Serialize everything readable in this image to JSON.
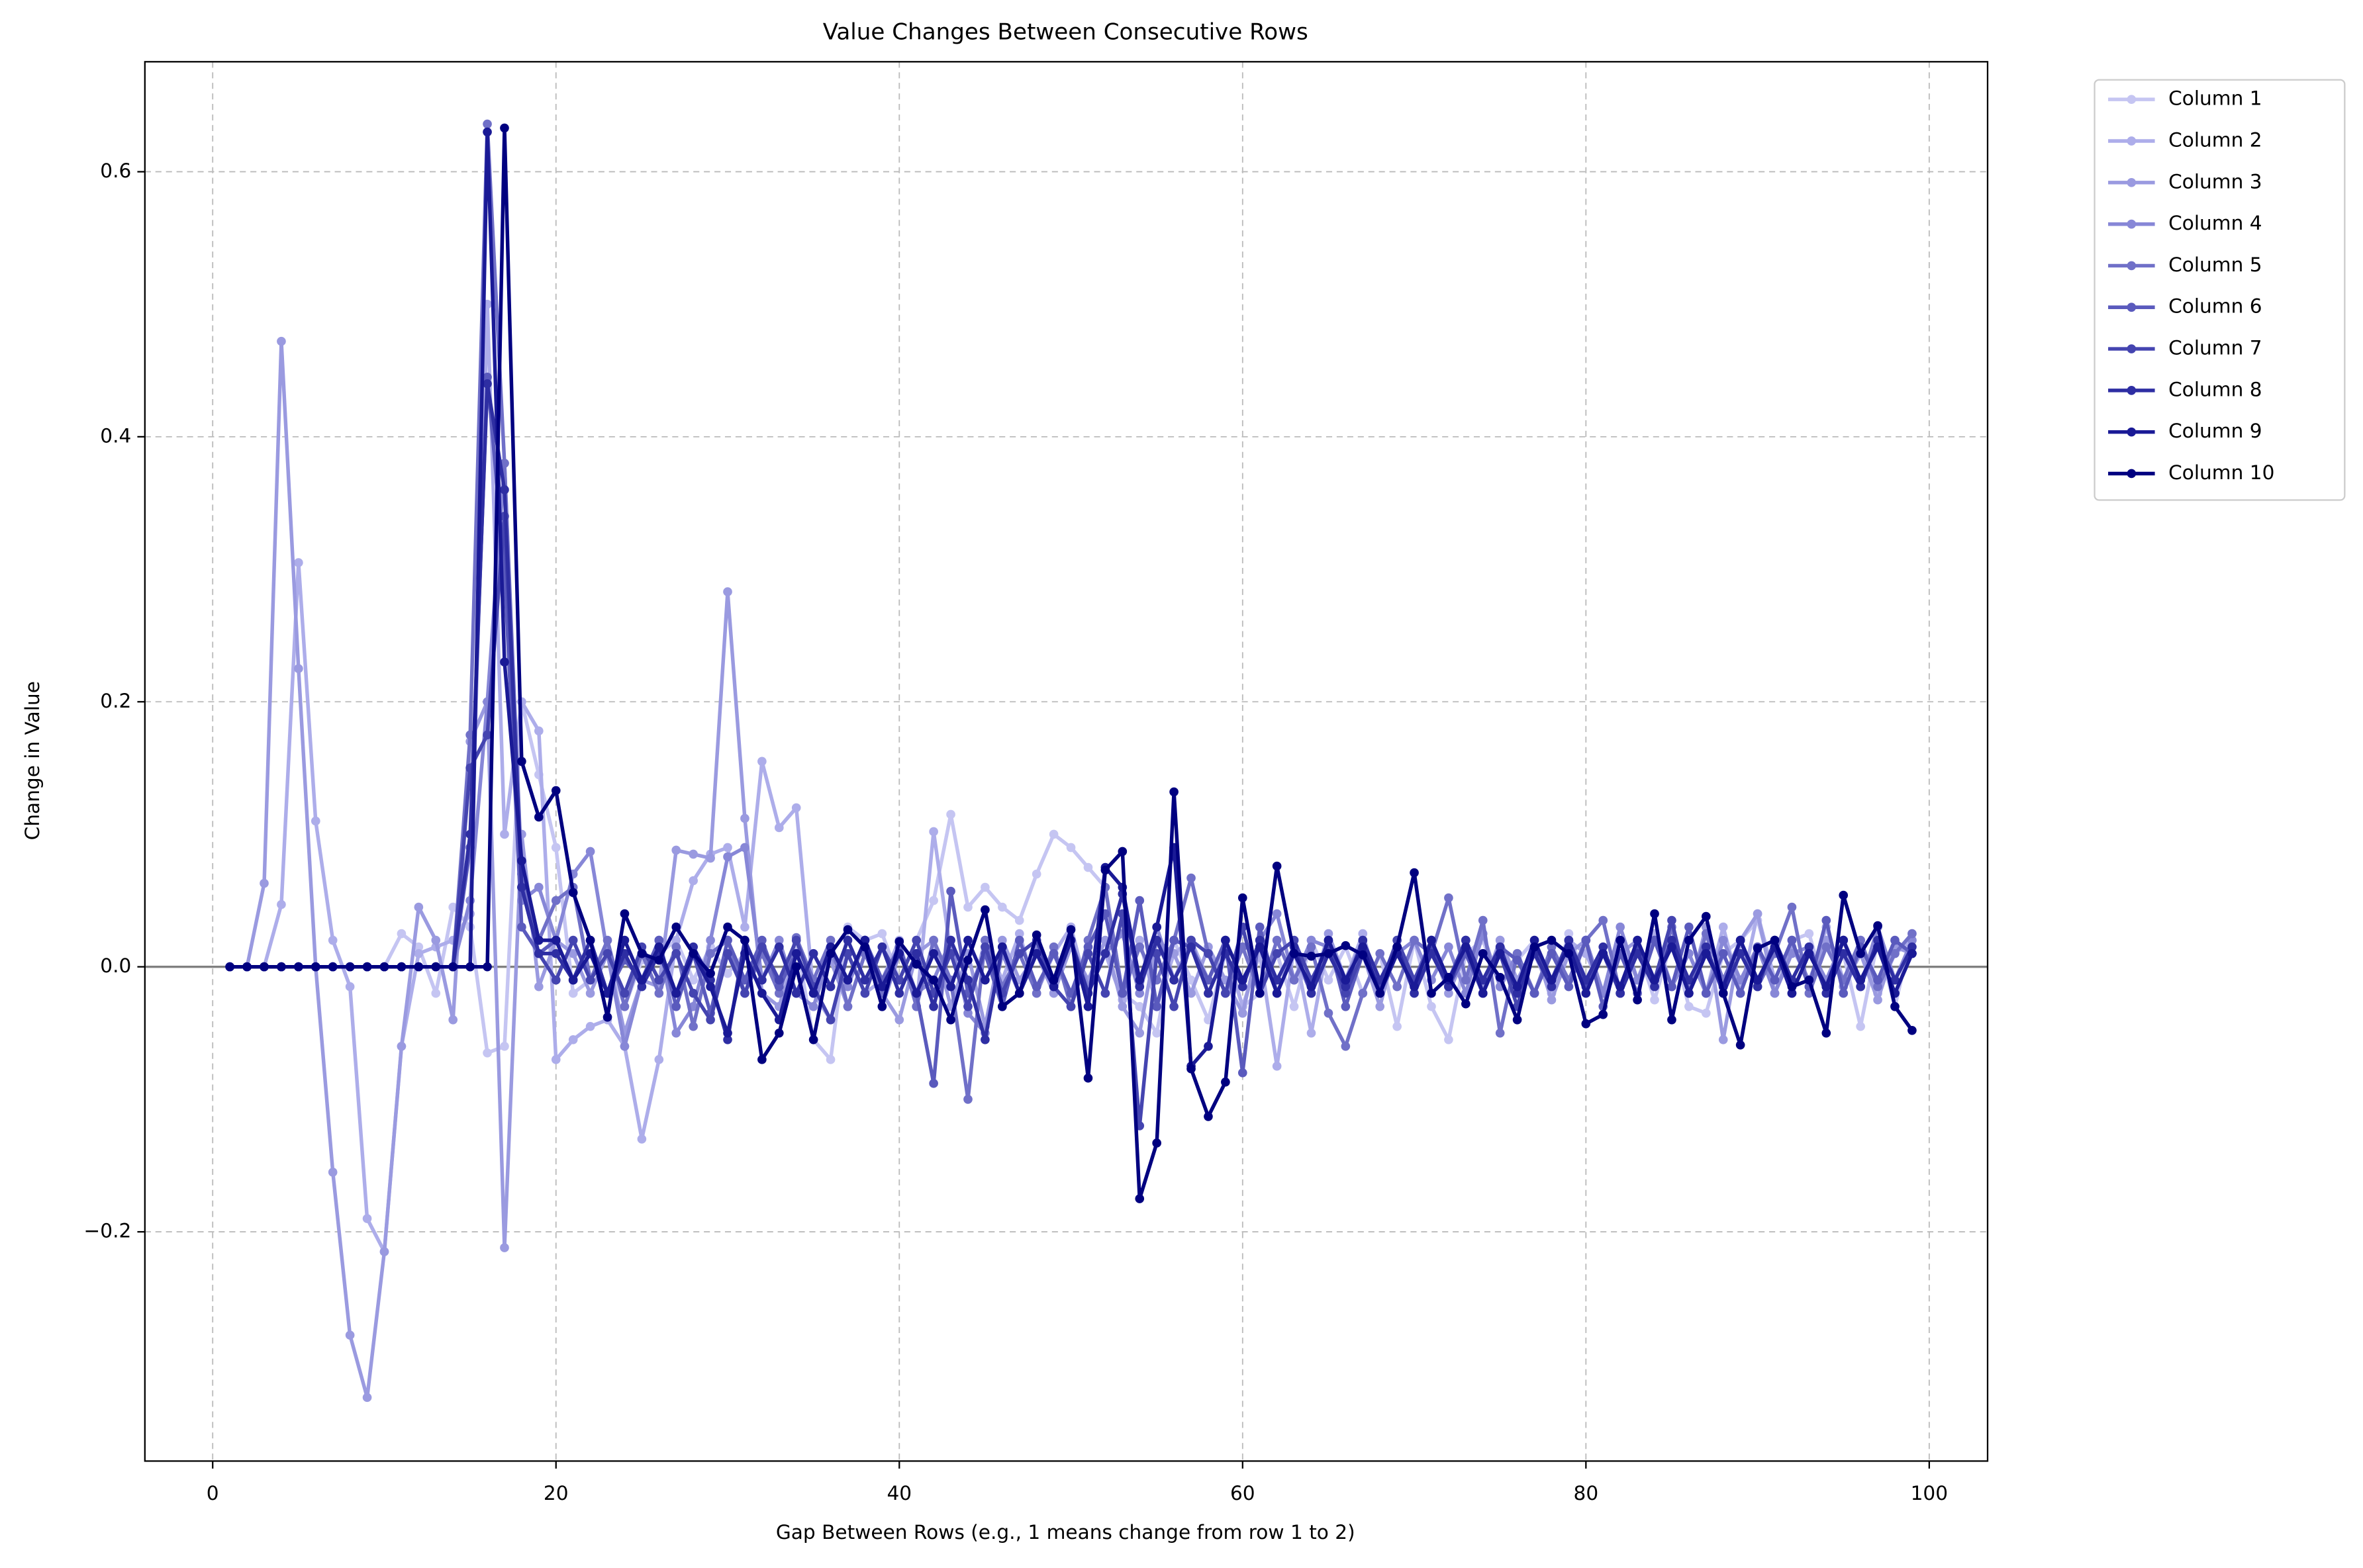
{
  "chart_data": {
    "type": "line",
    "title": "Value Changes Between Consecutive Rows",
    "xlabel": "Gap Between Rows (e.g., 1 means change from row 1 to 2)",
    "ylabel": "Change in Value",
    "xlim": [
      -3.95,
      103.4
    ],
    "ylim": [
      -0.373,
      0.683
    ],
    "xticks": [
      0,
      20,
      40,
      60,
      80,
      100
    ],
    "yticks": [
      {
        "value": -0.2,
        "label": "−0.2"
      },
      {
        "value": 0,
        "label": "0.0"
      },
      0.2,
      0.4,
      0.6
    ],
    "grid": true,
    "legend": "outside-upper-right",
    "x": [
      1,
      2,
      3,
      4,
      5,
      6,
      7,
      8,
      9,
      10,
      11,
      12,
      13,
      14,
      15,
      16,
      17,
      18,
      19,
      20,
      21,
      22,
      23,
      24,
      25,
      26,
      27,
      28,
      29,
      30,
      31,
      32,
      33,
      34,
      35,
      36,
      37,
      38,
      39,
      40,
      41,
      42,
      43,
      44,
      45,
      46,
      47,
      48,
      49,
      50,
      51,
      52,
      53,
      54,
      55,
      56,
      57,
      58,
      59,
      60,
      61,
      62,
      63,
      64,
      65,
      66,
      67,
      68,
      69,
      70,
      71,
      72,
      73,
      74,
      75,
      76,
      77,
      78,
      79,
      80,
      81,
      82,
      83,
      84,
      85,
      86,
      87,
      88,
      89,
      90,
      91,
      92,
      93,
      94,
      95,
      96,
      97,
      98,
      99
    ],
    "series": [
      {
        "name": "Column 1",
        "color": "#c5c5f2",
        "values": [
          0,
          0,
          0,
          0,
          0,
          0,
          0,
          0,
          0,
          0,
          0.025,
          0.015,
          -0.02,
          0.045,
          0.03,
          -0.065,
          -0.06,
          0.2,
          0.145,
          0.09,
          -0.02,
          -0.01,
          0.01,
          -0.03,
          0.005,
          0.01,
          0.02,
          -0.01,
          0.015,
          -0.005,
          0.01,
          -0.02,
          -0.03,
          0.02,
          -0.055,
          -0.07,
          0.03,
          0.02,
          0.025,
          -0.01,
          0.02,
          0.05,
          0.115,
          0.045,
          0.06,
          0.045,
          0.035,
          0.07,
          0.1,
          0.09,
          0.075,
          0.06,
          -0.02,
          -0.03,
          -0.05,
          0.02,
          -0.01,
          -0.04,
          0.01,
          -0.03,
          -0.02,
          0.01,
          -0.03,
          0.02,
          -0.01,
          0.015,
          -0.02,
          0.01,
          -0.045,
          0.02,
          -0.03,
          -0.055,
          0.01,
          0.02,
          -0.015,
          0.005,
          0.02,
          -0.02,
          0.025,
          -0.01,
          0.01,
          -0.02,
          0.015,
          -0.025,
          0.02,
          -0.03,
          -0.035,
          0.01,
          0.02,
          0.035,
          -0.01,
          0.02,
          0.025,
          -0.02,
          0.01,
          -0.045,
          0.02,
          -0.03,
          0.025
        ]
      },
      {
        "name": "Column 2",
        "color": "#adadea",
        "values": [
          0,
          0,
          0,
          0.047,
          0.305,
          0.11,
          0.02,
          -0.015,
          -0.19,
          -0.215,
          -0.06,
          0.01,
          0.015,
          0.02,
          0.04,
          0.5,
          0.1,
          0.2,
          0.178,
          -0.07,
          -0.055,
          -0.045,
          -0.04,
          -0.06,
          -0.13,
          -0.07,
          0.02,
          0.065,
          0.085,
          0.09,
          0.03,
          0.155,
          0.105,
          0.12,
          -0.02,
          -0.04,
          0.01,
          -0.02,
          -0.01,
          0.02,
          -0.03,
          0.102,
          0.01,
          -0.03,
          0.02,
          -0.01,
          0.025,
          -0.02,
          0.01,
          0.03,
          -0.02,
          0.01,
          -0.025,
          0.02,
          -0.03,
          0.01,
          0.02,
          -0.01,
          0.015,
          -0.03,
          0.01,
          -0.075,
          0.015,
          -0.05,
          0.02,
          -0.01,
          0.025,
          -0.02,
          0.01,
          -0.01,
          0.02,
          -0.01,
          0.015,
          -0.02,
          0.02,
          -0.01,
          0.01,
          -0.02,
          0.02,
          0.01,
          -0.02,
          0.02,
          -0.01,
          0.025,
          -0.015,
          0.01,
          -0.02,
          0.03,
          -0.02,
          0.04,
          -0.01,
          0.02,
          -0.015,
          0.03,
          -0.01,
          0.02,
          -0.02,
          0.01,
          0.02
        ]
      },
      {
        "name": "Column 3",
        "color": "#9a9ae0",
        "values": [
          0,
          0,
          0.063,
          0.472,
          0.225,
          0,
          -0.155,
          -0.278,
          -0.325,
          -0.215,
          -0.06,
          0.045,
          0.02,
          -0.04,
          0.17,
          0.2,
          -0.212,
          0.1,
          -0.015,
          0.02,
          0.01,
          -0.02,
          0.01,
          -0.05,
          -0.01,
          -0.015,
          0.088,
          0.085,
          0.082,
          0.283,
          0.112,
          -0.02,
          -0.03,
          0.01,
          -0.02,
          0.005,
          -0.03,
          0.01,
          -0.02,
          -0.04,
          0.01,
          0.02,
          -0.03,
          0.01,
          -0.045,
          0.02,
          -0.01,
          0.01,
          -0.02,
          0.015,
          -0.01,
          0.02,
          -0.03,
          -0.05,
          0.02,
          0.01,
          -0.02,
          0.015,
          -0.01,
          -0.035,
          0.02,
          -0.01,
          0.01,
          -0.02,
          0.025,
          -0.01,
          0.01,
          -0.03,
          0.02,
          -0.01,
          0.015,
          -0.02,
          0.01,
          -0.015,
          0.02,
          -0.01,
          0.015,
          -0.025,
          0.01,
          0.02,
          -0.02,
          0.01,
          0.02,
          -0.01,
          0.015,
          -0.02,
          0.03,
          -0.055,
          0.02,
          0.04,
          -0.02,
          0.015,
          -0.01,
          0.02,
          -0.015,
          0.01,
          -0.025,
          0.015,
          0.01
        ]
      },
      {
        "name": "Column 4",
        "color": "#8787d7",
        "values": [
          0,
          0,
          0,
          0,
          0,
          0,
          0,
          0,
          0,
          0,
          0,
          0,
          0,
          0,
          0.05,
          0.2,
          0.38,
          0.05,
          0.06,
          0.02,
          0.07,
          0.087,
          0.01,
          -0.06,
          -0.01,
          0.02,
          -0.05,
          -0.03,
          0.02,
          0.083,
          0.09,
          -0.01,
          0.02,
          -0.02,
          -0.03,
          0.01,
          -0.015,
          0.02,
          -0.03,
          0.01,
          -0.02,
          -0.01,
          0.02,
          -0.035,
          -0.05,
          0.01,
          -0.02,
          0.015,
          -0.01,
          0.02,
          -0.015,
          0.01,
          0.025,
          -0.02,
          0.03,
          -0.01,
          0.02,
          -0.02,
          0.01,
          -0.015,
          0.02,
          0.04,
          -0.01,
          0.02,
          0.015,
          -0.01,
          0.02,
          -0.01,
          0.01,
          0.02,
          -0.01,
          0.015,
          -0.02,
          0.025,
          -0.015,
          0.01,
          -0.02,
          0.015,
          -0.01,
          0.02,
          -0.02,
          0.03,
          -0.01,
          0.02,
          -0.015,
          0.01,
          -0.02,
          0.02,
          -0.01,
          0.015,
          -0.02,
          0.01,
          0.015,
          -0.01,
          0.02,
          -0.015,
          0.03,
          -0.01,
          0.02
        ]
      },
      {
        "name": "Column 5",
        "color": "#7070c8",
        "values": [
          0,
          0,
          0,
          0,
          0,
          0,
          0,
          0,
          0,
          0,
          0,
          0,
          0,
          0,
          0.175,
          0.636,
          0.38,
          0.07,
          0.02,
          0.05,
          0.06,
          -0.01,
          0.02,
          -0.03,
          0.01,
          -0.02,
          0.015,
          -0.045,
          0.01,
          0.02,
          -0.02,
          0.01,
          -0.02,
          0.022,
          -0.01,
          0.02,
          -0.03,
          0.01,
          -0.02,
          0.015,
          -0.03,
          0.02,
          -0.01,
          -0.1,
          0.02,
          -0.015,
          0.01,
          -0.02,
          0.015,
          -0.03,
          0.02,
          0.06,
          -0.02,
          0.015,
          -0.01,
          0.02,
          0.067,
          0.01,
          -0.02,
          0.015,
          -0.02,
          0.02,
          -0.01,
          0.015,
          -0.035,
          -0.06,
          -0.02,
          0.01,
          -0.015,
          0.02,
          0.01,
          0.052,
          -0.01,
          0.035,
          -0.05,
          0.01,
          -0.02,
          0.015,
          -0.01,
          0.02,
          0.035,
          -0.02,
          0.01,
          -0.015,
          0.03,
          -0.02,
          0.025,
          -0.01,
          0.02,
          -0.015,
          0.01,
          0.045,
          -0.02,
          0.015,
          -0.01,
          0.02,
          -0.015,
          0.01,
          0.025
        ]
      },
      {
        "name": "Column 6",
        "color": "#5a5abd",
        "values": [
          0,
          0,
          0,
          0,
          0,
          0,
          0,
          0,
          0,
          0,
          0,
          0,
          0,
          0,
          0.09,
          0.445,
          0.3,
          0.03,
          0.01,
          0.02,
          -0.01,
          0.01,
          -0.02,
          0.005,
          -0.01,
          0.02,
          -0.03,
          0.01,
          -0.035,
          0.02,
          -0.01,
          0.02,
          -0.015,
          0.01,
          -0.02,
          0.015,
          -0.01,
          0.02,
          -0.01,
          0.015,
          -0.02,
          -0.088,
          0.057,
          -0.02,
          0.01,
          -0.03,
          0.02,
          -0.015,
          0.01,
          -0.02,
          0.015,
          0.04,
          -0.02,
          0.05,
          -0.03,
          0.02,
          0.015,
          -0.01,
          0.02,
          -0.08,
          0.03,
          -0.02,
          0.01,
          -0.015,
          0.02,
          -0.03,
          0.01,
          -0.02,
          0.015,
          -0.01,
          0.02,
          -0.015,
          0.01,
          -0.02,
          0.015,
          0.005,
          -0.02,
          0.01,
          -0.015,
          0.02,
          -0.03,
          0.01,
          -0.02,
          0.02,
          -0.015,
          0.03,
          -0.02,
          0.01,
          -0.02,
          0.015,
          -0.01,
          0.02,
          -0.015,
          0.035,
          -0.02,
          0.015,
          -0.01,
          0.02,
          0.01
        ]
      },
      {
        "name": "Column 7",
        "color": "#4444b0",
        "values": [
          0,
          0,
          0,
          0,
          0,
          0,
          0,
          0,
          0,
          0,
          0,
          0,
          0,
          0,
          0.15,
          0.175,
          0.34,
          0.06,
          0.01,
          -0.01,
          0.02,
          -0.01,
          0.01,
          -0.02,
          0.015,
          -0.01,
          0.01,
          -0.02,
          -0.04,
          0.01,
          -0.02,
          0.015,
          -0.01,
          0.02,
          -0.015,
          -0.04,
          0.01,
          -0.02,
          0.015,
          -0.01,
          0.02,
          -0.02,
          0.01,
          -0.03,
          0.015,
          -0.02,
          0.01,
          0.02,
          -0.015,
          -0.03,
          0.01,
          -0.02,
          0.04,
          -0.12,
          0.01,
          -0.03,
          0.02,
          0.01,
          -0.02,
          0.03,
          -0.02,
          0.01,
          0.02,
          -0.01,
          0.015,
          -0.02,
          0.01,
          -0.015,
          0.02,
          -0.01,
          0.015,
          -0.01,
          0.02,
          -0.02,
          0.01,
          -0.03,
          0.015,
          -0.01,
          0.02,
          -0.015,
          0.01,
          -0.02,
          0.015,
          -0.01,
          0.035,
          -0.02,
          0.01,
          -0.015,
          0.02,
          -0.01,
          0.015,
          -0.02,
          0.01,
          -0.015,
          0.02,
          -0.01,
          0.015,
          -0.02,
          0.01
        ]
      },
      {
        "name": "Column 8",
        "color": "#2e2ea3",
        "values": [
          0,
          0,
          0,
          0,
          0,
          0,
          0,
          0,
          0,
          0,
          0,
          0,
          0,
          0,
          0.1,
          0.44,
          0.36,
          0.06,
          0.01,
          0.01,
          -0.01,
          0.02,
          -0.02,
          0.01,
          -0.015,
          0.01,
          -0.02,
          0.015,
          -0.01,
          -0.055,
          0.02,
          -0.01,
          0.015,
          -0.02,
          0.01,
          -0.015,
          0.02,
          -0.01,
          0.015,
          -0.02,
          0.01,
          -0.03,
          0.02,
          -0.01,
          -0.055,
          0.015,
          -0.02,
          0.01,
          -0.015,
          0.02,
          -0.02,
          0.01,
          0.055,
          -0.015,
          0.02,
          -0.01,
          0.015,
          -0.02,
          0.01,
          -0.015,
          0.02,
          -0.01,
          0.015,
          -0.02,
          0.01,
          -0.015,
          0.02,
          -0.01,
          0.015,
          -0.02,
          0.01,
          -0.015,
          0.02,
          -0.01,
          0.015,
          -0.02,
          0.01,
          -0.015,
          0.02,
          -0.01,
          0.015,
          -0.02,
          0.01,
          -0.015,
          0.02,
          -0.01,
          0.015,
          -0.02,
          0.01,
          -0.015,
          0.02,
          -0.01,
          0.015,
          -0.02,
          0.01,
          -0.015,
          0.02,
          -0.01,
          0.015
        ]
      },
      {
        "name": "Column 9",
        "color": "#1a1a96",
        "values": [
          0,
          0,
          0,
          0,
          0,
          0,
          0,
          0,
          0,
          0,
          0,
          0,
          0,
          0,
          0,
          0.63,
          0.23,
          0.08,
          0.02,
          0.02,
          -0.01,
          0.01,
          -0.02,
          0.02,
          -0.01,
          0.015,
          -0.02,
          0.01,
          -0.015,
          -0.05,
          0.01,
          -0.02,
          -0.04,
          0.01,
          -0.02,
          0.015,
          -0.01,
          0.02,
          -0.015,
          0.01,
          -0.02,
          0.01,
          -0.015,
          0.02,
          -0.01,
          0.015,
          -0.02,
          0.01,
          -0.015,
          0.02,
          -0.03,
          0.075,
          0.06,
          -0.01,
          0.03,
          0.09,
          -0.075,
          -0.06,
          0.02,
          -0.01,
          0.015,
          -0.02,
          0.01,
          -0.015,
          0.02,
          -0.01,
          0.015,
          -0.02,
          0.01,
          -0.015,
          0.02,
          -0.01,
          0.015,
          -0.02,
          0.01,
          -0.015,
          0.02,
          -0.01,
          0.015,
          -0.02,
          0.01,
          -0.015,
          0.02,
          -0.01,
          0.015,
          -0.02,
          0.01,
          -0.015,
          0.02,
          -0.01,
          0.015,
          -0.02,
          0.01,
          -0.015,
          0.02,
          -0.01,
          0.015,
          -0.02,
          0.01
        ]
      },
      {
        "name": "Column 10",
        "color": "#000080",
        "values": [
          0,
          0,
          0,
          0,
          0,
          0,
          0,
          0,
          0,
          0,
          0,
          0,
          0,
          0,
          0,
          0,
          0.633,
          0.155,
          0.113,
          0.133,
          0.056,
          0.02,
          -0.038,
          0.04,
          0.01,
          0.005,
          0.03,
          0.01,
          -0.005,
          0.03,
          0.02,
          -0.07,
          -0.05,
          0,
          -0.055,
          0.01,
          0.028,
          0.015,
          -0.03,
          0.019,
          0.002,
          -0.01,
          -0.04,
          0.005,
          0.043,
          -0.03,
          -0.02,
          0.024,
          -0.01,
          0.028,
          -0.084,
          0.073,
          0.087,
          -0.175,
          -0.133,
          0.132,
          -0.077,
          -0.113,
          -0.087,
          0.052,
          -0.02,
          0.076,
          0.01,
          0.008,
          0.01,
          0.016,
          0.009,
          -0.02,
          0.015,
          0.071,
          -0.02,
          -0.008,
          -0.028,
          0.01,
          -0.008,
          -0.04,
          0.015,
          0.02,
          0.01,
          -0.043,
          -0.036,
          0.02,
          -0.025,
          0.04,
          -0.04,
          0.02,
          0.038,
          -0.02,
          -0.059,
          0.014,
          0.02,
          -0.015,
          -0.01,
          -0.05,
          0.054,
          0.01,
          0.031,
          -0.03,
          -0.048
        ]
      }
    ]
  }
}
